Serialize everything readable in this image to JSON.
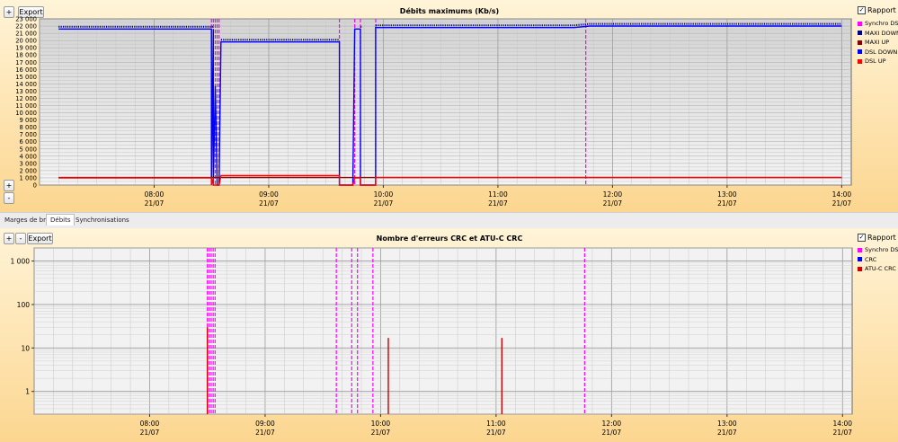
{
  "toolbar": {
    "zoom_in": "+",
    "zoom_out": "-",
    "export": "Export"
  },
  "rapport_label": "Rapport",
  "tabs": [
    "Marges de bruit",
    "Débits",
    "Synchronisations"
  ],
  "active_tab": 1,
  "colors": {
    "plot_bg_top": "#d4d4d4",
    "plot_bg_bottom": "#f4f4f4",
    "synchro": "#ff00ff",
    "maxi_down": "#00008b",
    "maxi_up": "#8b0000",
    "dsl_down": "#0000ff",
    "dsl_up": "#ff0000",
    "crc": "#0000ff",
    "atu_crc": "#cc0000"
  },
  "chart_data": [
    {
      "type": "line",
      "title": "Débits maximums (Kb/s)",
      "x_ticks": [
        {
          "time": "08:00",
          "date": "21/07"
        },
        {
          "time": "09:00",
          "date": "21/07"
        },
        {
          "time": "10:00",
          "date": "21/07"
        },
        {
          "time": "11:00",
          "date": "21/07"
        },
        {
          "time": "12:00",
          "date": "21/07"
        },
        {
          "time": "13:00",
          "date": "21/07"
        },
        {
          "time": "14:00",
          "date": "21/07"
        }
      ],
      "xlim": [
        "07:00",
        "14:05"
      ],
      "y_ticks": [
        "0",
        "1 000",
        "2 000",
        "3 000",
        "4 000",
        "5 000",
        "6 000",
        "7 000",
        "8 000",
        "9 000",
        "10 000",
        "11 000",
        "12 000",
        "13 000",
        "14 000",
        "15 000",
        "16 000",
        "17 000",
        "18 000",
        "19 000",
        "20 000",
        "21 000",
        "22 000",
        "23 000"
      ],
      "ylim": [
        0,
        23000
      ],
      "grid": true,
      "legend_position": "right",
      "legend": [
        "Synchro DSL",
        "MAXI DOWN",
        "MAXI UP",
        "DSL DOWN",
        "DSL UP"
      ],
      "synchro_events": [
        "08:30",
        "08:31",
        "08:32",
        "08:33",
        "08:34",
        "09:37",
        "09:45",
        "09:48",
        "09:56",
        "11:46"
      ],
      "series": [
        {
          "name": "MAXI DOWN",
          "style": "dotted",
          "points": [
            [
              "07:10",
              21900
            ],
            [
              "08:31",
              21900
            ],
            [
              "08:31",
              null
            ],
            [
              "08:35",
              20100
            ],
            [
              "09:37",
              20100
            ],
            [
              "09:37",
              null
            ],
            [
              "09:48",
              21900
            ],
            [
              "09:49",
              21900
            ],
            [
              "09:49",
              null
            ],
            [
              "09:56",
              22100
            ],
            [
              "11:40",
              22100
            ],
            [
              "11:48",
              22300
            ],
            [
              "14:00",
              22300
            ]
          ]
        },
        {
          "name": "DSL DOWN",
          "points": [
            [
              "07:10",
              21600
            ],
            [
              "08:30",
              21600
            ],
            [
              "08:30",
              0
            ],
            [
              "08:31",
              21600
            ],
            [
              "08:31",
              0
            ],
            [
              "08:32",
              13700
            ],
            [
              "08:33",
              0
            ],
            [
              "08:34",
              0
            ],
            [
              "08:35",
              19800
            ],
            [
              "09:37",
              19800
            ],
            [
              "09:37",
              0
            ],
            [
              "09:44",
              0
            ],
            [
              "09:45",
              21600
            ],
            [
              "09:48",
              21600
            ],
            [
              "09:48",
              0
            ],
            [
              "09:56",
              0
            ],
            [
              "09:56",
              21800
            ],
            [
              "11:40",
              21800
            ],
            [
              "11:48",
              22000
            ],
            [
              "14:00",
              22000
            ]
          ]
        },
        {
          "name": "MAXI UP",
          "points": [
            [
              "07:10",
              1050
            ],
            [
              "08:30",
              1050
            ],
            [
              "08:35",
              1050
            ],
            [
              "09:37",
              1050
            ],
            [
              "09:45",
              1050
            ],
            [
              "09:56",
              1050
            ],
            [
              "14:00",
              1050
            ]
          ]
        },
        {
          "name": "DSL UP",
          "points": [
            [
              "07:10",
              1000
            ],
            [
              "08:30",
              1000
            ],
            [
              "08:30",
              0
            ],
            [
              "08:31",
              1000
            ],
            [
              "08:31",
              0
            ],
            [
              "08:34",
              0
            ],
            [
              "08:35",
              1300
            ],
            [
              "09:37",
              1300
            ],
            [
              "09:37",
              0
            ],
            [
              "09:44",
              0
            ],
            [
              "09:45",
              1000
            ],
            [
              "09:48",
              1000
            ],
            [
              "09:48",
              0
            ],
            [
              "09:56",
              0
            ],
            [
              "09:56",
              1050
            ],
            [
              "14:00",
              1050
            ]
          ]
        }
      ]
    },
    {
      "type": "line",
      "title": "Nombre d'erreurs CRC et ATU-C CRC",
      "x_ticks": [
        {
          "time": "08:00",
          "date": "21/07"
        },
        {
          "time": "09:00",
          "date": "21/07"
        },
        {
          "time": "10:00",
          "date": "21/07"
        },
        {
          "time": "11:00",
          "date": "21/07"
        },
        {
          "time": "12:00",
          "date": "21/07"
        },
        {
          "time": "13:00",
          "date": "21/07"
        },
        {
          "time": "14:00",
          "date": "21/07"
        }
      ],
      "xlim": [
        "07:00",
        "14:05"
      ],
      "y_scale": "log",
      "y_ticks": [
        "1",
        "10",
        "100",
        "1 000"
      ],
      "ylim": [
        0.3,
        2000
      ],
      "grid": true,
      "legend_position": "right",
      "legend": [
        "Synchro DSL",
        "CRC",
        "ATU-C CRC"
      ],
      "synchro_events": [
        "08:30",
        "08:31",
        "08:32",
        "08:33",
        "08:34",
        "09:37",
        "09:45",
        "09:48",
        "09:56",
        "11:46"
      ],
      "spikes": [
        {
          "series": "ATU-C CRC",
          "time": "08:30",
          "value": 30
        },
        {
          "series": "ATU-C CRC",
          "time": "10:04",
          "value": 17
        },
        {
          "series": "ATU-C CRC",
          "time": "11:03",
          "value": 17
        }
      ]
    }
  ]
}
